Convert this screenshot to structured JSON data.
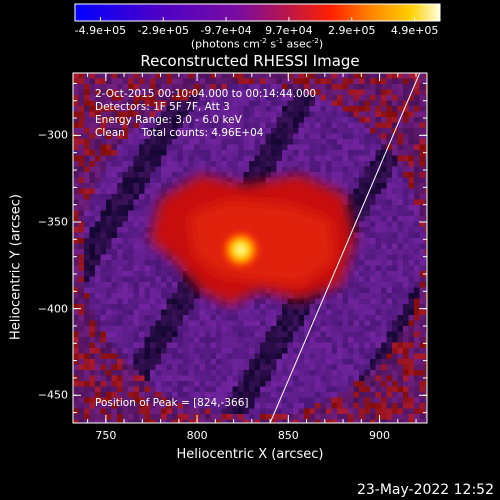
{
  "chart_data": {
    "type": "heatmap",
    "title": "Reconstructed RHESSI Image",
    "xlabel": "Heliocentric X (arcsec)",
    "ylabel": "Heliocentric Y (arcsec)",
    "xlim": [
      732,
      926
    ],
    "ylim": [
      -466,
      -264
    ],
    "x_ticks": [
      "750",
      "800",
      "850",
      "900"
    ],
    "y_ticks": [
      "-300",
      "-350",
      "-400",
      "-450"
    ],
    "colorbar": {
      "ticks": [
        "-4.9e+05",
        "-2.9e+05",
        "-9.7e+04",
        "9.7e+04",
        "2.9e+05",
        "4.9e+05"
      ],
      "unit_prefix": "(photons cm",
      "unit_sup1": "-2",
      "unit_mid": " s",
      "unit_sup2": "-1",
      "unit_mid2": " asec",
      "unit_sup3": "-2",
      "unit_suffix": ")",
      "range": [
        -490000,
        490000
      ]
    },
    "annotations": [
      "2-Oct-2015 00:10:04.000 to 00:14:44.000",
      "Detectors: 1F 5F 7F, Att 3",
      "Energy Range: 3.0 - 6.0 keV",
      "Clean     Total counts: 4.96E+04"
    ],
    "peak_label": "Position of Peak = [824,-366]",
    "peak": [
      824,
      -366
    ],
    "limb_line": [
      [
        840,
        -466
      ],
      [
        922,
        -264
      ]
    ],
    "grid": false
  },
  "timestamp": "23-May-2022 12:52"
}
